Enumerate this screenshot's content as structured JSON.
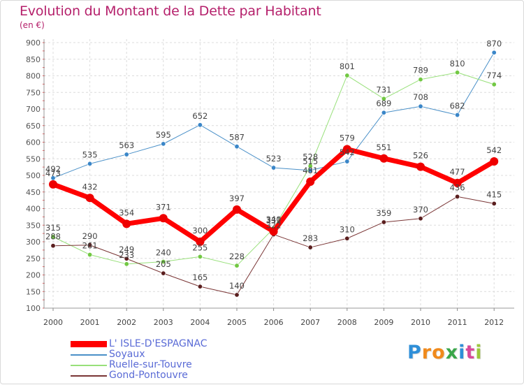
{
  "chart_data": {
    "type": "line",
    "title": "Evolution du Montant de la Dette par Habitant",
    "subtitle": "(en €)",
    "x": [
      "2000",
      "2001",
      "2002",
      "2003",
      "2004",
      "2005",
      "2006",
      "2007",
      "2008",
      "2009",
      "2010",
      "2011",
      "2012"
    ],
    "ylim": [
      100,
      900
    ],
    "yticks": [
      100,
      150,
      200,
      250,
      300,
      350,
      400,
      450,
      500,
      550,
      600,
      650,
      700,
      750,
      800,
      850,
      900
    ],
    "grid": true,
    "legend_position": "bottom-left",
    "series": [
      {
        "name": "Soyaux",
        "color": "#4a90c8",
        "marker": "#3a86c8",
        "width": 1,
        "values": [
          492,
          535,
          563,
          595,
          652,
          587,
          523,
          515,
          542,
          689,
          708,
          682,
          870
        ]
      },
      {
        "name": "Ruelle-sur-Touvre",
        "color": "#98e07a",
        "marker": "#72c843",
        "width": 1,
        "values": [
          315,
          261,
          233,
          240,
          255,
          228,
          340,
          528,
          801,
          731,
          789,
          810,
          774
        ]
      },
      {
        "name": "Gond-Pontouvre",
        "color": "#7a3535",
        "marker": "#5a1e1e",
        "width": 1,
        "values": [
          288,
          290,
          249,
          205,
          165,
          140,
          322,
          283,
          310,
          359,
          370,
          436,
          415
        ]
      },
      {
        "name": "L' ISLE-D'ESPAGNAC",
        "color": "#ff0000",
        "marker": "#ee0000",
        "width": 7,
        "values": [
          473,
          432,
          354,
          371,
          300,
          397,
          331,
          481,
          579,
          551,
          526,
          477,
          542
        ]
      }
    ],
    "legend_order": [
      "L' ISLE-D'ESPAGNAC",
      "Soyaux",
      "Ruelle-sur-Touvre",
      "Gond-Pontouvre"
    ]
  },
  "logo": {
    "text": "Proxiti",
    "letters": [
      "P",
      "r",
      "o",
      "x",
      "i",
      "t",
      "i"
    ],
    "colors": [
      "#2f8fd8",
      "#f08a1c",
      "#f08a1c",
      "#3aa64a",
      "#2f8fd8",
      "#d84a9a",
      "#9cc83c"
    ]
  }
}
